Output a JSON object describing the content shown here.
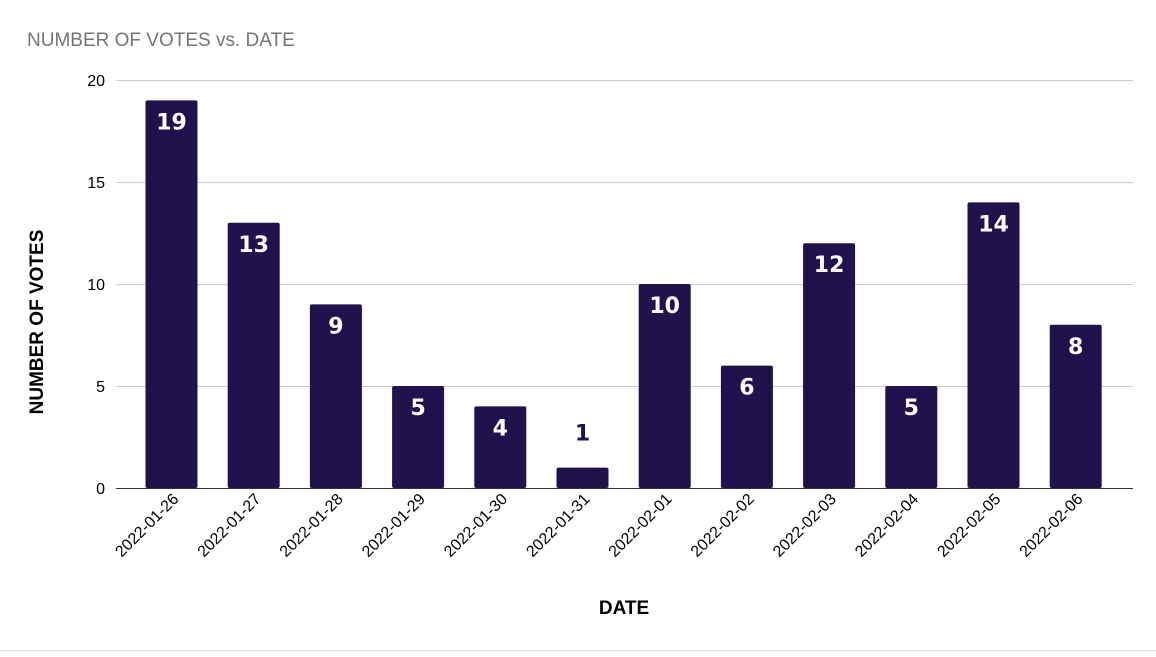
{
  "chart_data": {
    "type": "bar",
    "title": "NUMBER OF VOTES vs. DATE",
    "xlabel": "DATE",
    "ylabel": "NUMBER OF VOTES",
    "categories": [
      "2022-01-26",
      "2022-01-27",
      "2022-01-28",
      "2022-01-29",
      "2022-01-30",
      "2022-01-31",
      "2022-02-01",
      "2022-02-02",
      "2022-02-03",
      "2022-02-04",
      "2022-02-05",
      "2022-02-06"
    ],
    "values": [
      19,
      13,
      9,
      5,
      4,
      1,
      10,
      6,
      12,
      5,
      14,
      8
    ],
    "ylim": [
      0,
      20
    ],
    "yticks": [
      0,
      5,
      10,
      15,
      20
    ],
    "grid": true,
    "legend": "none",
    "colors": {
      "bar": "#21124d",
      "label_inside": "#ffffff",
      "label_outside": "#21124d"
    }
  }
}
